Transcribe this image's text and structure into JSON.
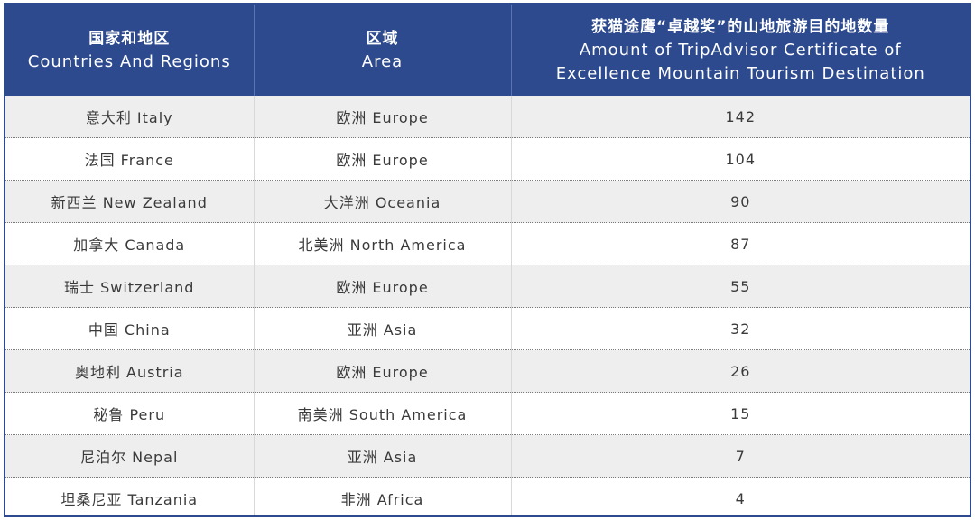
{
  "chart_data": {
    "type": "table",
    "columns": [
      {
        "cn": "国家和地区",
        "en": "Countries And Regions"
      },
      {
        "cn": "区域",
        "en": "Area"
      },
      {
        "cn": "获猫途鹰“卓越奖”的山地旅游目的地数量",
        "en": "Amount of TripAdvisor Certificate of",
        "en2": "Excellence Mountain Tourism Destination"
      }
    ],
    "rows": [
      {
        "country": "意大利 Italy",
        "area": "欧洲 Europe",
        "count": 142
      },
      {
        "country": "法国 France",
        "area": "欧洲 Europe",
        "count": 104
      },
      {
        "country": "新西兰  New Zealand",
        "area": "大洋洲 Oceania",
        "count": 90
      },
      {
        "country": "加拿大 Canada",
        "area": "北美洲 North America",
        "count": 87
      },
      {
        "country": "瑞士 Switzerland",
        "area": "欧洲 Europe",
        "count": 55
      },
      {
        "country": "中国 China",
        "area": "亚洲 Asia",
        "count": 32
      },
      {
        "country": "奥地利 Austria",
        "area": "欧洲 Europe",
        "count": 26
      },
      {
        "country": "秘鲁 Peru",
        "area": "南美洲 South America",
        "count": 15
      },
      {
        "country": "尼泊尔 Nepal",
        "area": "亚洲 Asia",
        "count": 7
      },
      {
        "country": "坦桑尼亚 Tanzania",
        "area": "非洲 Africa",
        "count": 4
      }
    ]
  },
  "colors": {
    "header_bg": "#2d4a8e",
    "header_text": "#ffffff",
    "row_alt_bg": "#eeeeee",
    "body_text": "#3a3a3a"
  }
}
